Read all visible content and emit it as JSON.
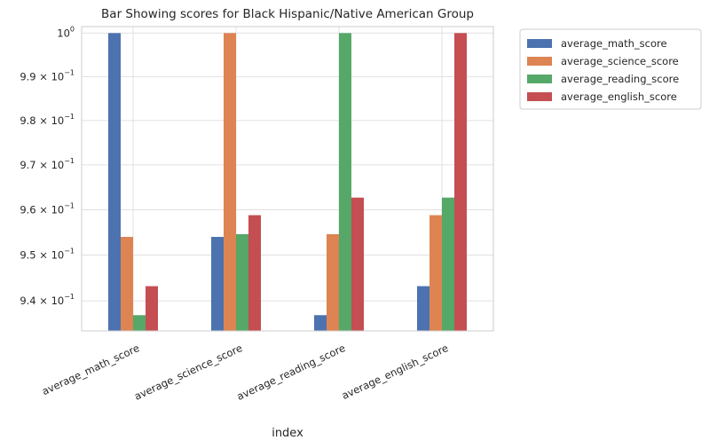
{
  "chart_data": {
    "type": "bar",
    "title": "Bar Showing scores for Black Hispanic/Native American Group",
    "xlabel": "index",
    "ylabel": "",
    "y_scale": "log",
    "ylim": [
      0.9335,
      1.0015
    ],
    "y_ticks": [
      {
        "value": 0.94,
        "mantissa": "9.4",
        "exp": "−1"
      },
      {
        "value": 0.95,
        "mantissa": "9.5",
        "exp": "−1"
      },
      {
        "value": 0.96,
        "mantissa": "9.6",
        "exp": "−1"
      },
      {
        "value": 0.97,
        "mantissa": "9.7",
        "exp": "−1"
      },
      {
        "value": 0.98,
        "mantissa": "9.8",
        "exp": "−1"
      },
      {
        "value": 0.99,
        "mantissa": "9.9",
        "exp": "−1"
      },
      {
        "value": 1.0,
        "mantissa": "10",
        "exp": "0"
      }
    ],
    "grid": true,
    "legend_position": "outside-top-right",
    "categories": [
      "average_math_score",
      "average_science_score",
      "average_reading_score",
      "average_english_score"
    ],
    "series": [
      {
        "name": "average_math_score",
        "color": "#4c72b0",
        "values": [
          1.0,
          0.954,
          0.9369,
          0.9432
        ]
      },
      {
        "name": "average_science_score",
        "color": "#dd8452",
        "values": [
          0.954,
          1.0,
          0.9546,
          0.9588
        ]
      },
      {
        "name": "average_reading_score",
        "color": "#55a868",
        "values": [
          0.9369,
          0.9546,
          1.0,
          0.9627
        ]
      },
      {
        "name": "average_english_score",
        "color": "#c44e52",
        "values": [
          0.9432,
          0.9588,
          0.9627,
          1.0
        ]
      }
    ]
  }
}
